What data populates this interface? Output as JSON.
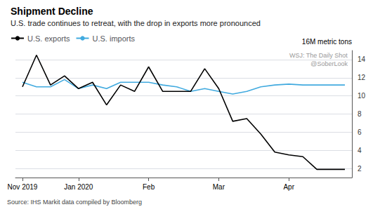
{
  "chart_data": {
    "type": "line",
    "title": "Shipment Decline",
    "subtitle": "U.S. trade continues to retreat, with the drop in exports more pronounced",
    "y_label": "16M metric tons",
    "source": "Source: IHS Markit data compiled by Bloomberg",
    "annotations": [
      "WSJ: The Daily Shot",
      "@SoberLook"
    ],
    "categories": [
      "Nov 2019",
      null,
      null,
      null,
      "Jan 2020",
      null,
      null,
      null,
      null,
      "Feb",
      null,
      null,
      null,
      null,
      "Mar",
      null,
      null,
      null,
      null,
      "Apr",
      null,
      null,
      null,
      null
    ],
    "series": [
      {
        "name": "U.S. exports",
        "color": "#000000",
        "values": [
          11.0,
          14.5,
          11.2,
          12.2,
          10.8,
          11.5,
          9.0,
          11.2,
          10.5,
          13.2,
          10.5,
          10.5,
          10.5,
          13.0,
          10.8,
          7.2,
          7.5,
          5.8,
          3.8,
          3.5,
          3.3,
          1.9,
          1.9,
          1.9
        ]
      },
      {
        "name": "U.S. imports",
        "color": "#41AADF",
        "values": [
          11.5,
          11.0,
          11.0,
          11.8,
          10.8,
          11.2,
          10.8,
          11.5,
          11.5,
          11.5,
          11.2,
          11.0,
          10.5,
          10.8,
          10.5,
          10.2,
          10.5,
          11.0,
          11.2,
          11.3,
          11.2,
          11.2,
          11.2,
          11.2
        ]
      }
    ],
    "ylim": [
      1,
      15
    ],
    "yticks": [
      2,
      4,
      6,
      8,
      10,
      12,
      14
    ],
    "grid": true,
    "legend": "upper left"
  }
}
